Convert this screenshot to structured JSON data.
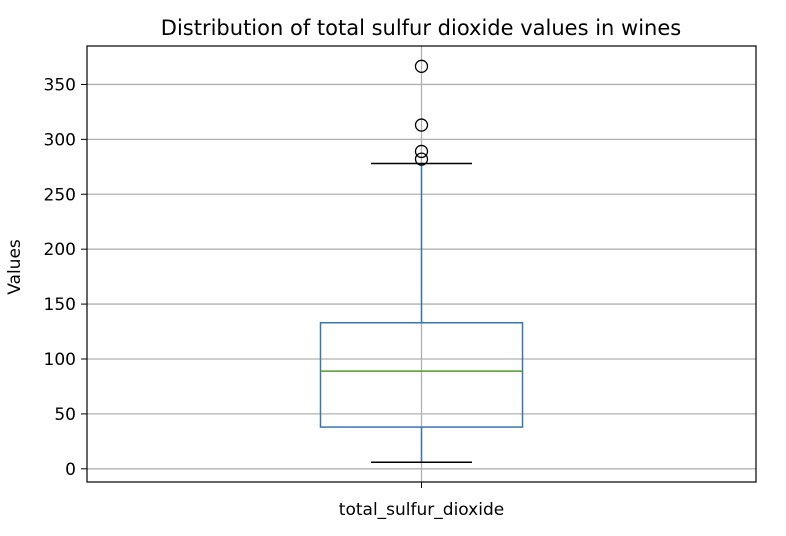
{
  "chart_data": {
    "type": "box",
    "title": "Distribution of total sulfur dioxide values in wines",
    "ylabel": "Values",
    "xlabel": "",
    "categories": [
      "total_sulfur_dioxide"
    ],
    "ylim": [
      -12,
      385
    ],
    "yticks": [
      0,
      50,
      100,
      150,
      200,
      250,
      300,
      350
    ],
    "grid": true,
    "series": [
      {
        "category": "total_sulfur_dioxide",
        "whisker_low": 6,
        "q1": 38,
        "median": 89,
        "q3": 133,
        "whisker_high": 278,
        "outliers": [
          366.5,
          313,
          289,
          282
        ]
      }
    ],
    "colors": {
      "box": "#3a76af",
      "median": "#4f9a2e",
      "whisker": "#3a76af",
      "cap": "#000000",
      "outlier": "#000000",
      "grid": "#b0b0b0"
    }
  }
}
